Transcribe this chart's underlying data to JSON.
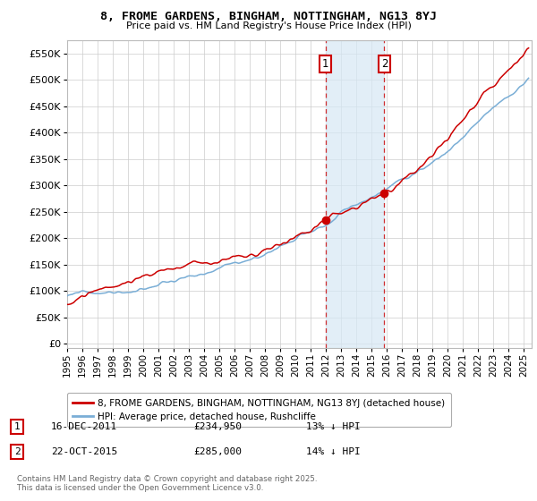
{
  "title": "8, FROME GARDENS, BINGHAM, NOTTINGHAM, NG13 8YJ",
  "subtitle": "Price paid vs. HM Land Registry's House Price Index (HPI)",
  "background_color": "#ffffff",
  "grid_color": "#cccccc",
  "plot_bg_color": "#ffffff",
  "yticks": [
    0,
    50000,
    100000,
    150000,
    200000,
    250000,
    300000,
    350000,
    400000,
    450000,
    500000,
    550000
  ],
  "ytick_labels": [
    "£0",
    "£50K",
    "£100K",
    "£150K",
    "£200K",
    "£250K",
    "£300K",
    "£350K",
    "£400K",
    "£450K",
    "£500K",
    "£550K"
  ],
  "ylim": [
    -8000,
    575000
  ],
  "xlim_start": 1995.0,
  "xlim_end": 2025.5,
  "hpi_color": "#7aaed6",
  "price_color": "#cc0000",
  "shade_color": "#d6e8f5",
  "marker1_date": 2011.96,
  "marker2_date": 2015.83,
  "marker1_label": "1",
  "marker2_label": "2",
  "marker1_price": 234950,
  "marker2_price": 285000,
  "legend_entry1": "8, FROME GARDENS, BINGHAM, NOTTINGHAM, NG13 8YJ (detached house)",
  "legend_entry2": "HPI: Average price, detached house, Rushcliffe",
  "annotation1_date": "16-DEC-2011",
  "annotation1_price": "£234,950",
  "annotation1_hpi": "13% ↓ HPI",
  "annotation2_date": "22-OCT-2015",
  "annotation2_price": "£285,000",
  "annotation2_hpi": "14% ↓ HPI",
  "footer": "Contains HM Land Registry data © Crown copyright and database right 2025.\nThis data is licensed under the Open Government Licence v3.0.",
  "xtick_years": [
    1995,
    1996,
    1997,
    1998,
    1999,
    2000,
    2001,
    2002,
    2003,
    2004,
    2005,
    2006,
    2007,
    2008,
    2009,
    2010,
    2011,
    2012,
    2013,
    2014,
    2015,
    2016,
    2017,
    2018,
    2019,
    2020,
    2021,
    2022,
    2023,
    2024,
    2025
  ]
}
